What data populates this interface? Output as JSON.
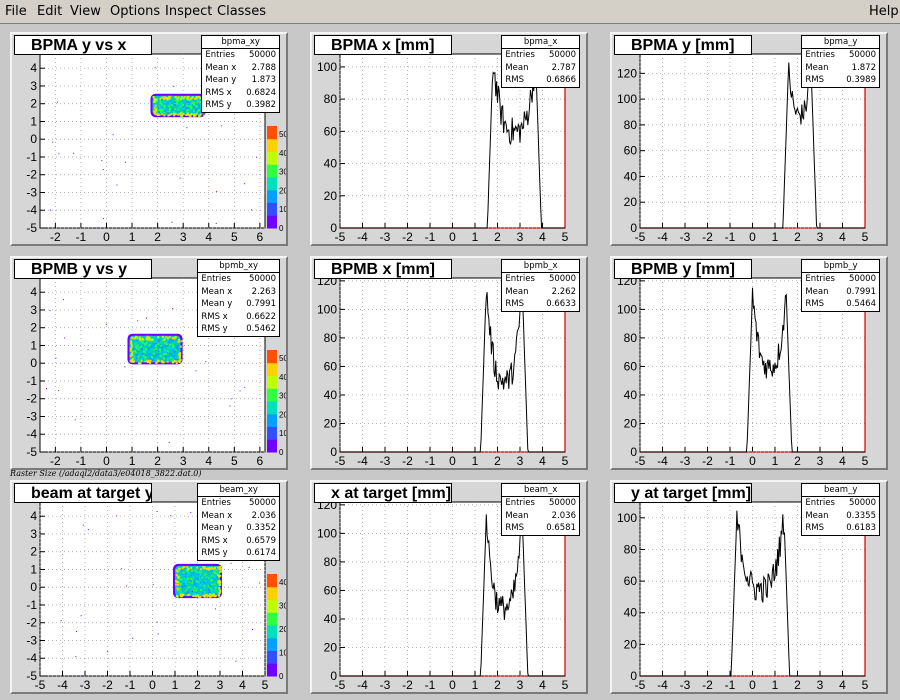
{
  "menu": {
    "file": "File",
    "edit": "Edit",
    "view": "View",
    "options": "Options",
    "inspect": "Inspect",
    "classes": "Classes",
    "help": "Help"
  },
  "footer_label": "Raster Size (/adaql2/data3/e04018_3822.dat.0)",
  "colors": {
    "canvas_bg": "#c8c8c8",
    "frame_bg": "#ffffff",
    "hist_line": "#000000",
    "axis_red": "#cc0000"
  },
  "pads": [
    {
      "title": "BPMA y vs x",
      "stats_name": "bpma_xy",
      "stats": [
        [
          "Entries",
          "50000"
        ],
        [
          "Mean x",
          "2.788"
        ],
        [
          "Mean y",
          "1.873"
        ],
        [
          "RMS x",
          "0.6824"
        ],
        [
          "RMS y",
          "0.3982"
        ]
      ],
      "xticks": [
        "-2",
        "-1",
        "0",
        "1",
        "2",
        "3",
        "4",
        "5",
        "6"
      ],
      "yticks": [
        "4",
        "3",
        "2",
        "1",
        "0",
        "-1",
        "-2",
        "-3",
        "-4",
        "-5"
      ],
      "zticks": [
        "50",
        "40",
        "30",
        "20",
        "10",
        "0"
      ]
    },
    {
      "title": "BPMA x [mm]",
      "stats_name": "bpma_x",
      "stats": [
        [
          "Entries",
          "50000"
        ],
        [
          "Mean",
          "2.787"
        ],
        [
          "RMS",
          "0.6866"
        ]
      ],
      "xticks": [
        "-5",
        "-4",
        "-3",
        "-2",
        "-1",
        "0",
        "1",
        "2",
        "3",
        "4",
        "5"
      ],
      "yticks": [
        "100",
        "80",
        "60",
        "40",
        "20",
        "0"
      ]
    },
    {
      "title": "BPMA y [mm]",
      "stats_name": "bpma_y",
      "stats": [
        [
          "Entries",
          "50000"
        ],
        [
          "Mean",
          "1.872"
        ],
        [
          "RMS",
          "0.3989"
        ]
      ],
      "xticks": [
        "-5",
        "-4",
        "-3",
        "-2",
        "-1",
        "0",
        "1",
        "2",
        "3",
        "4",
        "5"
      ],
      "yticks": [
        "120",
        "100",
        "80",
        "60",
        "40",
        "20",
        "0"
      ]
    },
    {
      "title": "BPMB y vs y",
      "stats_name": "bpmb_xy",
      "stats": [
        [
          "Entries",
          "50000"
        ],
        [
          "Mean x",
          "2.263"
        ],
        [
          "Mean y",
          "0.7991"
        ],
        [
          "RMS x",
          "0.6622"
        ],
        [
          "RMS y",
          "0.5462"
        ]
      ],
      "xticks": [
        "-2",
        "-1",
        "0",
        "1",
        "2",
        "3",
        "4",
        "5",
        "6"
      ],
      "yticks": [
        "4",
        "3",
        "2",
        "1",
        "0",
        "-1",
        "-2",
        "-3",
        "-4",
        "-5"
      ],
      "zticks": [
        "50",
        "40",
        "30",
        "20",
        "10",
        "0"
      ]
    },
    {
      "title": "BPMB x [mm]",
      "stats_name": "bpmb_x",
      "stats": [
        [
          "Entries",
          "50000"
        ],
        [
          "Mean",
          "2.262"
        ],
        [
          "RMS",
          "0.6633"
        ]
      ],
      "xticks": [
        "-5",
        "-4",
        "-3",
        "-2",
        "-1",
        "0",
        "1",
        "2",
        "3",
        "4",
        "5"
      ],
      "yticks": [
        "120",
        "100",
        "80",
        "60",
        "40",
        "20",
        "0"
      ]
    },
    {
      "title": "BPMB y [mm]",
      "stats_name": "bpmb_y",
      "stats": [
        [
          "Entries",
          "50000"
        ],
        [
          "Mean",
          "0.7991"
        ],
        [
          "RMS",
          "0.5464"
        ]
      ],
      "xticks": [
        "-5",
        "-4",
        "-3",
        "-2",
        "-1",
        "0",
        "1",
        "2",
        "3",
        "4",
        "5"
      ],
      "yticks": [
        "120",
        "100",
        "80",
        "60",
        "40",
        "20",
        "0"
      ]
    },
    {
      "title": "beam at target y vs x",
      "stats_name": "beam_xy",
      "stats": [
        [
          "Entries",
          "50000"
        ],
        [
          "Mean x",
          "2.036"
        ],
        [
          "Mean y",
          "0.3352"
        ],
        [
          "RMS x",
          "0.6579"
        ],
        [
          "RMS y",
          "0.6174"
        ]
      ],
      "xticks": [
        "-5",
        "-4",
        "-3",
        "-2",
        "-1",
        "0",
        "1",
        "2",
        "3",
        "4",
        "5"
      ],
      "yticks": [
        "4",
        "3",
        "2",
        "1",
        "0",
        "-1",
        "-2",
        "-3",
        "-4",
        "-5"
      ],
      "zticks": [
        "40",
        "30",
        "20",
        "10",
        "0"
      ]
    },
    {
      "title": "x at target [mm]",
      "stats_name": "beam_x",
      "stats": [
        [
          "Entries",
          "50000"
        ],
        [
          "Mean",
          "2.036"
        ],
        [
          "RMS",
          "0.6581"
        ]
      ],
      "xticks": [
        "-5",
        "-4",
        "-3",
        "-2",
        "-1",
        "0",
        "1",
        "2",
        "3",
        "4",
        "5"
      ],
      "yticks": [
        "120",
        "100",
        "80",
        "60",
        "40",
        "20",
        "0"
      ]
    },
    {
      "title": "y at target [mm]",
      "stats_name": "beam_y",
      "stats": [
        [
          "Entries",
          "50000"
        ],
        [
          "Mean",
          "0.3355"
        ],
        [
          "RMS",
          "0.6183"
        ]
      ],
      "xticks": [
        "-5",
        "-4",
        "-3",
        "-2",
        "-1",
        "0",
        "1",
        "2",
        "3",
        "4",
        "5"
      ],
      "yticks": [
        "100",
        "80",
        "60",
        "40",
        "20",
        "0"
      ]
    }
  ]
}
